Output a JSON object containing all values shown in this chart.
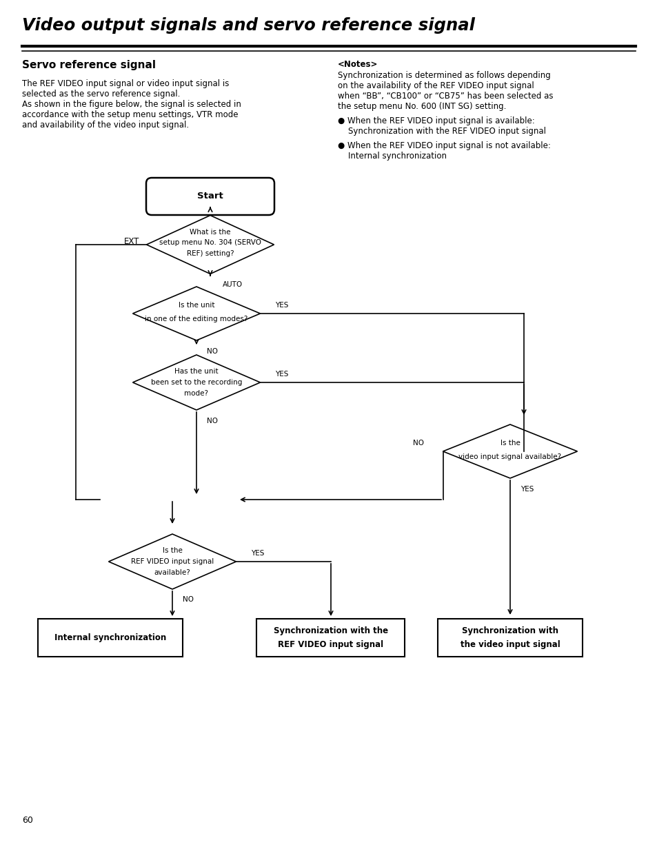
{
  "title": "Video output signals and servo reference signal",
  "subtitle": "Servo reference signal",
  "bg_color": "#ffffff",
  "text_color": "#000000",
  "page_number": "60",
  "left_text_line1": "The REF VIDEO input signal or video input signal is",
  "left_text_line2": "selected as the servo reference signal.",
  "left_text_line3": "As shown in the figure below, the signal is selected in",
  "left_text_line4": "accordance with the setup menu settings, VTR mode",
  "left_text_line5": "and availability of the video input signal.",
  "notes_header": "<Notes>",
  "notes_line1": "Synchronization is determined as follows depending",
  "notes_line2": "on the availability of the REF VIDEO input signal",
  "notes_line3": "when “BB”, “CB100” or “CB75” has been selected as",
  "notes_line4": "the setup menu No. 600 (INT SG) setting.",
  "bullet1_line1": "● When the REF VIDEO input signal is available:",
  "bullet1_line2": "    Synchronization with the REF VIDEO input signal",
  "bullet2_line1": "● When the REF VIDEO input signal is not available:",
  "bullet2_line2": "    Internal synchronization",
  "start_label": "Start",
  "d1_line1": "What is the",
  "d1_line2": "setup menu No. 304 (SERVO",
  "d1_line3": "REF) setting?",
  "d1_left_label": "EXT",
  "d1_down_label": "AUTO",
  "d2_line1": "Is the unit",
  "d2_line2": "in one of the editing modes?",
  "d2_yes": "YES",
  "d2_no": "NO",
  "d3_line1": "Has the unit",
  "d3_line2": "been set to the recording",
  "d3_line3": "mode?",
  "d3_yes": "YES",
  "d3_no": "NO",
  "d4_line1": "Is the",
  "d4_line2": "video input signal available?",
  "d4_no": "NO",
  "d4_yes": "YES",
  "d5_line1": "Is the",
  "d5_line2": "REF VIDEO input signal",
  "d5_line3": "available?",
  "d5_yes": "YES",
  "d5_no": "NO",
  "box1_line1": "Internal synchronization",
  "box2_line1": "Synchronization with the",
  "box2_line2": "REF VIDEO input signal",
  "box3_line1": "Synchronization with",
  "box3_line2": "the video input signal"
}
